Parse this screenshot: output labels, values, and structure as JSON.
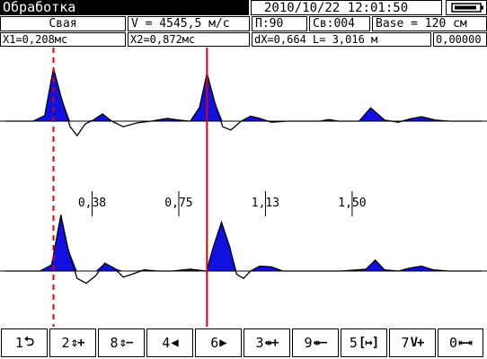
{
  "header": {
    "title": "Обработка",
    "datetime": "2010/10/22  12:01:50"
  },
  "info": {
    "object": "Свая",
    "velocity": "V = 4545,5 м/с",
    "p": "П:90",
    "cb": "Св:004",
    "base": "Base =  120 см"
  },
  "measurements": {
    "x1": "X1=0,208мс",
    "x2": "X2=0,872мс",
    "dx_l": "dX=0,664  L= 3,016 м",
    "extra": "0,00000"
  },
  "chart_data": {
    "type": "line",
    "title": "",
    "scale_ticks": [
      {
        "value": 0.375,
        "label": "0,38"
      },
      {
        "value": 0.75,
        "label": "0,75"
      },
      {
        "value": 1.125,
        "label": "1,13"
      },
      {
        "value": 1.5,
        "label": "1,50"
      }
    ],
    "x_range": [
      0,
      2.06
    ],
    "cursors": [
      {
        "name": "X1",
        "value": 0.208,
        "style": "dashed",
        "color": "#e00000"
      },
      {
        "name": "X2",
        "value": 0.872,
        "style": "solid",
        "color": "#e00000"
      }
    ],
    "series": [
      {
        "x": [
          0,
          0.12,
          0.17,
          0.208,
          0.24,
          0.28,
          0.31,
          0.345,
          0.38,
          0.42,
          0.46,
          0.51,
          0.57,
          0.63,
          0.7,
          0.75,
          0.8,
          0.84,
          0.872,
          0.905,
          0.94,
          0.975,
          1.02,
          1.06,
          1.1,
          1.15,
          1.22,
          1.29,
          1.36,
          1.4,
          1.44,
          1.48,
          1.53,
          1.58,
          1.64,
          1.7,
          1.75,
          1.8,
          1.86,
          1.92,
          2.06
        ],
        "values": [
          0,
          0,
          0.1,
          0.95,
          0.45,
          -0.1,
          -0.26,
          -0.05,
          0.02,
          0.13,
          0.0,
          -0.1,
          -0.03,
          0.0,
          0.05,
          0.02,
          0.0,
          0.25,
          0.86,
          0.35,
          -0.1,
          -0.16,
          0.0,
          0.09,
          0.05,
          -0.02,
          0.0,
          0.0,
          0.0,
          0.03,
          0.0,
          0.0,
          0.0,
          0.24,
          0.02,
          -0.02,
          0.04,
          0.08,
          0.02,
          0.0,
          0.0
        ]
      },
      {
        "x": [
          0,
          0.15,
          0.2,
          0.24,
          0.27,
          0.31,
          0.35,
          0.39,
          0.43,
          0.47,
          0.51,
          0.55,
          0.6,
          0.66,
          0.72,
          0.8,
          0.87,
          0.9,
          0.935,
          0.97,
          1.0,
          1.03,
          1.06,
          1.1,
          1.15,
          1.2,
          1.27,
          1.35,
          1.45,
          1.56,
          1.6,
          1.64,
          1.7,
          1.75,
          1.8,
          1.85,
          1.92,
          2.06
        ],
        "values": [
          0,
          0,
          0.1,
          0.92,
          0.38,
          -0.12,
          -0.2,
          -0.08,
          0.13,
          0.05,
          -0.1,
          -0.05,
          0.02,
          0.0,
          0.0,
          0.03,
          0.0,
          0.4,
          0.8,
          0.4,
          -0.05,
          -0.12,
          0.0,
          0.08,
          0.07,
          0.0,
          0.0,
          0.0,
          0.0,
          0.03,
          0.18,
          0.02,
          0.0,
          0.05,
          0.08,
          0.02,
          0.0,
          0.0
        ]
      }
    ],
    "fill_color": "#1010e0",
    "line_color": "#000000"
  },
  "toolbar": [
    {
      "key": "1",
      "icon": "⮌",
      "name": "back-button"
    },
    {
      "key": "2",
      "icon": "⇕+",
      "name": "amplify-button"
    },
    {
      "key": "8",
      "icon": "⇕−",
      "name": "attenuate-button"
    },
    {
      "key": "4",
      "icon": "◀",
      "name": "move-left-button"
    },
    {
      "key": "6",
      "icon": "▶",
      "name": "move-right-button"
    },
    {
      "key": "3",
      "icon": "⇹+",
      "name": "stretch-button"
    },
    {
      "key": "9",
      "icon": "⇹−",
      "name": "compress-button"
    },
    {
      "key": "5",
      "icon": "[↦]",
      "name": "select-range-button"
    },
    {
      "key": "7",
      "icon": "V+",
      "name": "velocity-button"
    },
    {
      "key": "0",
      "icon": "⇤⇥",
      "name": "cursor-button"
    }
  ]
}
